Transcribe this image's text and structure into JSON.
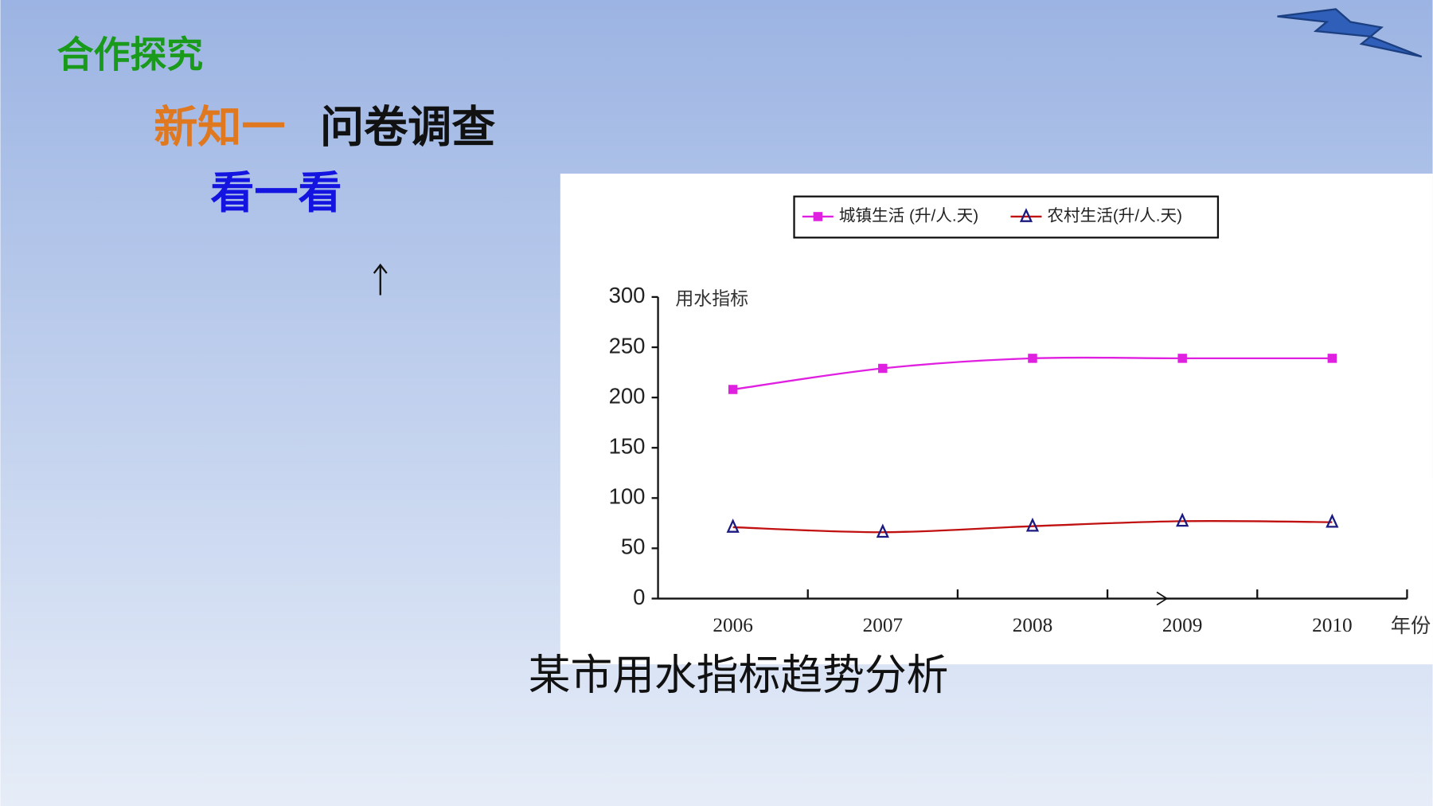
{
  "header": {
    "section": "合作探究",
    "topic_prefix": "新知一",
    "topic": "问卷调查",
    "subtopic": "看一看"
  },
  "chart_data": {
    "type": "line",
    "title": "某市用水指标趋势分析",
    "y_label": "用水指标",
    "x_label": "年份",
    "categories": [
      "2006",
      "2007",
      "2008",
      "2009",
      "2010"
    ],
    "series": [
      {
        "name": "城镇生活 (升/人.天)",
        "color": "#e020e0",
        "marker": "square",
        "marker_color": "#e020e0",
        "values": [
          208,
          229,
          239,
          239,
          239
        ]
      },
      {
        "name": "农村生活(升/人.天)",
        "color": "#c01010",
        "marker": "triangle",
        "marker_color": "#1a1a80",
        "values": [
          71,
          66,
          72,
          77,
          76
        ]
      }
    ],
    "ylim": [
      0,
      300
    ],
    "yticks": [
      0,
      50,
      100,
      150,
      200,
      250,
      300
    ],
    "legend": "top"
  }
}
